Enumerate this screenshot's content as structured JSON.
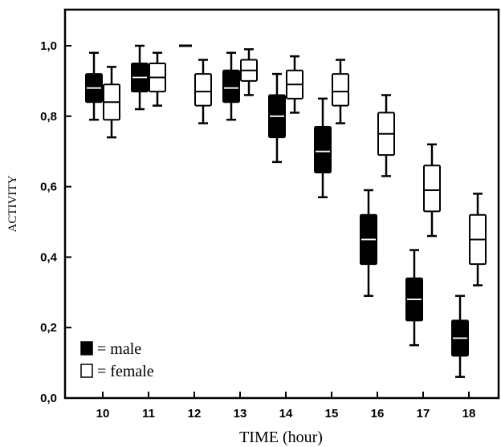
{
  "chart_data": {
    "type": "box",
    "xlabel": "TIME (hour)",
    "ylabel": "ACTIVITY",
    "ylim": [
      0,
      1.05
    ],
    "yticks": [
      {
        "value": 0.0,
        "label": "0,0"
      },
      {
        "value": 0.2,
        "label": "0,2"
      },
      {
        "value": 0.4,
        "label": "0,4"
      },
      {
        "value": 0.6,
        "label": "0,6"
      },
      {
        "value": 0.8,
        "label": "0,8"
      },
      {
        "value": 1.0,
        "label": "1,0"
      }
    ],
    "categories": [
      "10",
      "11",
      "12",
      "13",
      "14",
      "15",
      "16",
      "17",
      "18"
    ],
    "legend": {
      "position": "bottom-left",
      "entries": [
        {
          "series": "male",
          "label": "= male"
        },
        {
          "series": "female",
          "label": "= female"
        }
      ]
    },
    "series": [
      {
        "name": "male",
        "fill": "#000000",
        "boxes": [
          {
            "x": "10",
            "min": 0.79,
            "q1": 0.84,
            "median": 0.88,
            "q3": 0.92,
            "max": 0.98
          },
          {
            "x": "11",
            "min": 0.82,
            "q1": 0.87,
            "median": 0.91,
            "q3": 0.95,
            "max": 1.0
          },
          {
            "x": "12",
            "min": 1.0,
            "q1": 1.0,
            "median": 1.0,
            "q3": 1.0,
            "max": 1.0
          },
          {
            "x": "13",
            "min": 0.79,
            "q1": 0.84,
            "median": 0.88,
            "q3": 0.93,
            "max": 0.98
          },
          {
            "x": "14",
            "min": 0.67,
            "q1": 0.74,
            "median": 0.8,
            "q3": 0.86,
            "max": 0.92
          },
          {
            "x": "15",
            "min": 0.57,
            "q1": 0.64,
            "median": 0.7,
            "q3": 0.77,
            "max": 0.85
          },
          {
            "x": "16",
            "min": 0.29,
            "q1": 0.38,
            "median": 0.45,
            "q3": 0.52,
            "max": 0.59
          },
          {
            "x": "17",
            "min": 0.15,
            "q1": 0.22,
            "median": 0.28,
            "q3": 0.34,
            "max": 0.42
          },
          {
            "x": "18",
            "min": 0.06,
            "q1": 0.12,
            "median": 0.17,
            "q3": 0.22,
            "max": 0.29
          }
        ]
      },
      {
        "name": "female",
        "fill": "#ffffff",
        "boxes": [
          {
            "x": "10",
            "min": 0.74,
            "q1": 0.79,
            "median": 0.84,
            "q3": 0.89,
            "max": 0.94
          },
          {
            "x": "11",
            "min": 0.83,
            "q1": 0.87,
            "median": 0.91,
            "q3": 0.95,
            "max": 0.98
          },
          {
            "x": "12",
            "min": 0.78,
            "q1": 0.83,
            "median": 0.87,
            "q3": 0.92,
            "max": 0.96
          },
          {
            "x": "13",
            "min": 0.86,
            "q1": 0.9,
            "median": 0.93,
            "q3": 0.96,
            "max": 0.99
          },
          {
            "x": "14",
            "min": 0.81,
            "q1": 0.85,
            "median": 0.89,
            "q3": 0.93,
            "max": 0.97
          },
          {
            "x": "15",
            "min": 0.78,
            "q1": 0.83,
            "median": 0.87,
            "q3": 0.92,
            "max": 0.96
          },
          {
            "x": "16",
            "min": 0.63,
            "q1": 0.69,
            "median": 0.75,
            "q3": 0.81,
            "max": 0.86
          },
          {
            "x": "17",
            "min": 0.46,
            "q1": 0.53,
            "median": 0.59,
            "q3": 0.66,
            "max": 0.72
          },
          {
            "x": "18",
            "min": 0.32,
            "q1": 0.38,
            "median": 0.45,
            "q3": 0.52,
            "max": 0.58
          }
        ]
      }
    ]
  }
}
